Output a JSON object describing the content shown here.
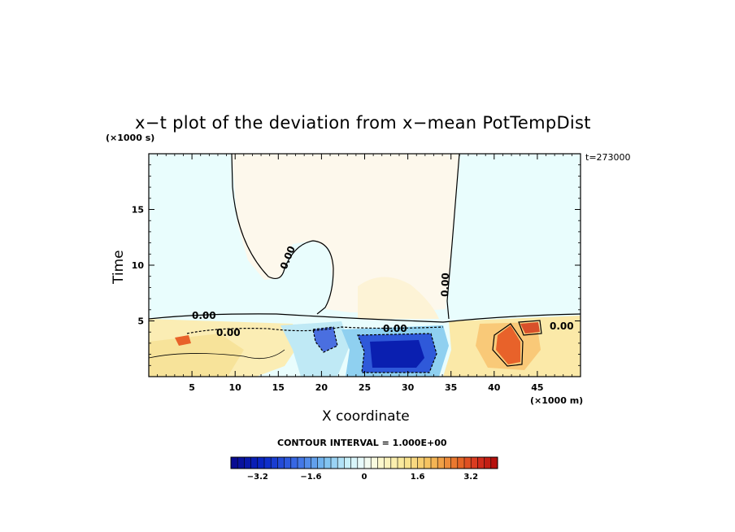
{
  "chart_data": {
    "type": "heatmap",
    "title": "x−t plot of the deviation from x−mean PotTempDist",
    "xlabel": "X coordinate",
    "ylabel": "Time",
    "x_unit": "(×1000 m)",
    "y_unit": "(×1000 s)",
    "time_stamp": "t=273000",
    "xlim": [
      0,
      50
    ],
    "ylim": [
      0,
      20
    ],
    "x_ticks": [
      5,
      10,
      15,
      20,
      25,
      30,
      35,
      40,
      45
    ],
    "y_ticks": [
      5,
      10,
      15
    ],
    "contour_interval": "CONTOUR INTERVAL = 1.000E+00",
    "contour_labels": [
      "0.00",
      "0.00",
      "0.00",
      "0.00",
      "0.00",
      "0.00"
    ],
    "colorbar": {
      "min": -4.0,
      "max": 4.0,
      "step": 0.2,
      "tick_values": [
        -3.2,
        -1.6,
        0,
        1.6,
        3.2
      ],
      "tick_labels": [
        "−3.2",
        "−1.6",
        "0",
        "1.6",
        "3.2"
      ]
    },
    "field_regions": [
      {
        "name": "upper-left-cool",
        "x": [
          0,
          10
        ],
        "t": [
          5,
          20
        ],
        "value": -0.3
      },
      {
        "name": "upper-center-warm",
        "x": [
          10,
          35
        ],
        "t": [
          5,
          20
        ],
        "value": 0.2
      },
      {
        "name": "upper-right-cool",
        "x": [
          35,
          50
        ],
        "t": [
          5,
          20
        ],
        "value": -0.3
      },
      {
        "name": "lower-left-warm",
        "x": [
          0,
          14
        ],
        "t": [
          0,
          5
        ],
        "value": 0.9
      },
      {
        "name": "cool-pocket-1",
        "x": [
          14,
          23
        ],
        "t": [
          0,
          5
        ],
        "value": -1.3
      },
      {
        "name": "strong-cool-core",
        "x": [
          25,
          34
        ],
        "t": [
          0,
          4
        ],
        "value": -3.5
      },
      {
        "name": "warm-core-right",
        "x": [
          40,
          43
        ],
        "t": [
          1,
          4
        ],
        "value": 2.8
      }
    ]
  }
}
